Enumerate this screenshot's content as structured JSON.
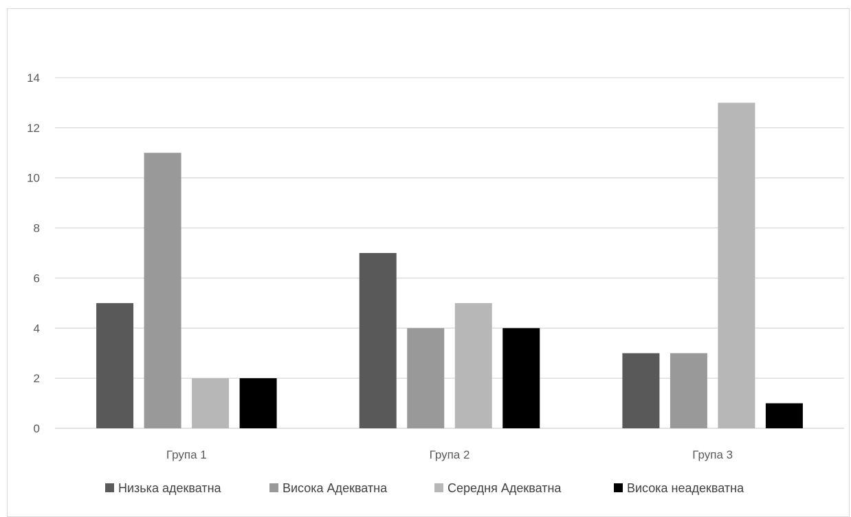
{
  "chart_data": {
    "type": "bar",
    "categories": [
      "Група 1",
      "Група 2",
      "Група 3"
    ],
    "series": [
      {
        "name": "Низька адекватна",
        "values": [
          5,
          7,
          3
        ],
        "color": "#595959"
      },
      {
        "name": "Висока Адекватна",
        "values": [
          11,
          4,
          3
        ],
        "color": "#999999"
      },
      {
        "name": "Середня Адекватна",
        "values": [
          2,
          5,
          13
        ],
        "color": "#b7b7b7"
      },
      {
        "name": "Висока неадекватна",
        "values": [
          2,
          4,
          1
        ],
        "color": "#000000"
      }
    ],
    "ylim": [
      0,
      14
    ],
    "yticks": [
      0,
      2,
      4,
      6,
      8,
      10,
      12,
      14
    ],
    "grid": true,
    "legend": "bottom"
  }
}
